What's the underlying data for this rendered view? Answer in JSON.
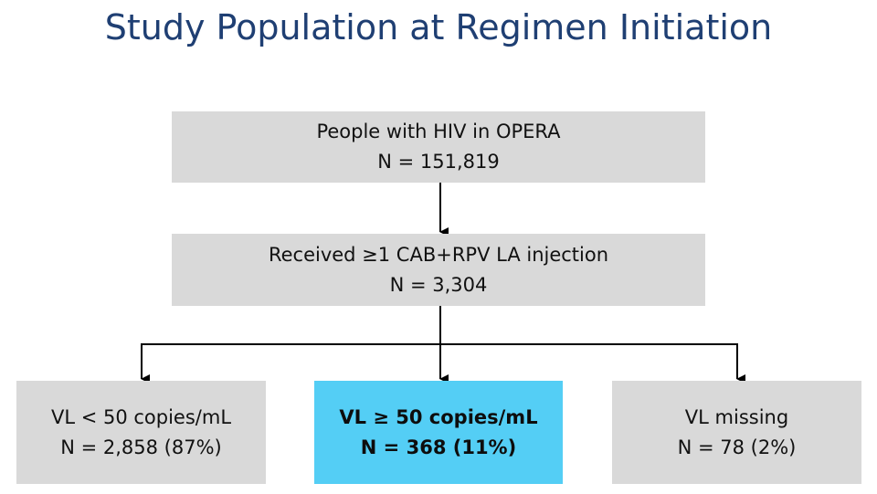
{
  "title": "Study Population at Regimen Initiation",
  "colors": {
    "title": "#1f3f73",
    "box_fill": "#d9d9d9",
    "highlight_fill": "#54cef5",
    "connector": "#000000"
  },
  "boxes": {
    "opera": {
      "label": "People with HIV in OPERA",
      "count": "N = 151,819"
    },
    "cab_rpv": {
      "label": "Received ≥1 CAB+RPV LA injection",
      "count": "N = 3,304"
    },
    "vl_low": {
      "label": "VL < 50 copies/mL",
      "count": "N = 2,858 (87%)"
    },
    "vl_high": {
      "label": "VL ≥ 50 copies/mL",
      "count": "N = 368 (11%)"
    },
    "vl_missing": {
      "label": "VL missing",
      "count": "N = 78 (2%)"
    }
  }
}
